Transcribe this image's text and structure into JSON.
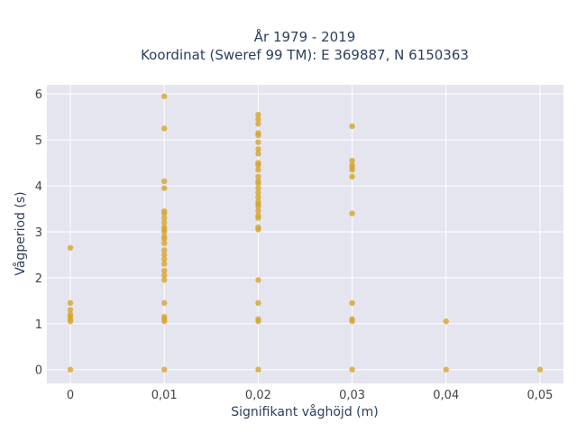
{
  "chart_data": {
    "type": "scatter",
    "title_line1": "År 1979 - 2019",
    "title_line2": "Koordinat (Sweref 99 TM): E 369887, N 6150363",
    "xlabel": "Signifikant våghöjd (m)",
    "ylabel": "Vågperiod (s)",
    "xlim": [
      -0.0025,
      0.0525
    ],
    "ylim": [
      -0.3,
      6.2
    ],
    "x_ticks": [
      0,
      0.01,
      0.02,
      0.03,
      0.04,
      0.05
    ],
    "x_tick_labels": [
      "0",
      "0,01",
      "0,02",
      "0,03",
      "0,04",
      "0,05"
    ],
    "y_ticks": [
      0,
      1,
      2,
      3,
      4,
      5,
      6
    ],
    "y_tick_labels": [
      "0",
      "1",
      "2",
      "3",
      "4",
      "5",
      "6"
    ],
    "grid": true,
    "plot_background": "#e5e5f0",
    "marker_color": "#d4a52a",
    "series": [
      {
        "points": [
          [
            0,
            0
          ],
          [
            0,
            1.05
          ],
          [
            0,
            1.1
          ],
          [
            0,
            1.15
          ],
          [
            0,
            1.2
          ],
          [
            0,
            1.3
          ],
          [
            0,
            1.45
          ],
          [
            0,
            2.65
          ],
          [
            0.01,
            0
          ],
          [
            0.01,
            1.05
          ],
          [
            0.01,
            1.1
          ],
          [
            0.01,
            1.15
          ],
          [
            0.01,
            1.45
          ],
          [
            0.01,
            1.95
          ],
          [
            0.01,
            2.05
          ],
          [
            0.01,
            2.15
          ],
          [
            0.01,
            2.3
          ],
          [
            0.01,
            2.4
          ],
          [
            0.01,
            2.5
          ],
          [
            0.01,
            2.6
          ],
          [
            0.01,
            2.75
          ],
          [
            0.01,
            2.85
          ],
          [
            0.01,
            2.9
          ],
          [
            0.01,
            3.0
          ],
          [
            0.01,
            3.05
          ],
          [
            0.01,
            3.1
          ],
          [
            0.01,
            3.2
          ],
          [
            0.01,
            3.3
          ],
          [
            0.01,
            3.4
          ],
          [
            0.01,
            3.45
          ],
          [
            0.01,
            3.95
          ],
          [
            0.01,
            4.1
          ],
          [
            0.01,
            5.25
          ],
          [
            0.01,
            5.95
          ],
          [
            0.02,
            0
          ],
          [
            0.02,
            1.05
          ],
          [
            0.02,
            1.1
          ],
          [
            0.02,
            1.45
          ],
          [
            0.02,
            1.95
          ],
          [
            0.02,
            3.05
          ],
          [
            0.02,
            3.1
          ],
          [
            0.02,
            3.3
          ],
          [
            0.02,
            3.35
          ],
          [
            0.02,
            3.45
          ],
          [
            0.02,
            3.55
          ],
          [
            0.02,
            3.6
          ],
          [
            0.02,
            3.65
          ],
          [
            0.02,
            3.75
          ],
          [
            0.02,
            3.85
          ],
          [
            0.02,
            3.95
          ],
          [
            0.02,
            4.05
          ],
          [
            0.02,
            4.1
          ],
          [
            0.02,
            4.2
          ],
          [
            0.02,
            4.35
          ],
          [
            0.02,
            4.45
          ],
          [
            0.02,
            4.5
          ],
          [
            0.02,
            4.7
          ],
          [
            0.02,
            4.8
          ],
          [
            0.02,
            4.95
          ],
          [
            0.02,
            5.1
          ],
          [
            0.02,
            5.15
          ],
          [
            0.02,
            5.35
          ],
          [
            0.02,
            5.45
          ],
          [
            0.02,
            5.55
          ],
          [
            0.03,
            0
          ],
          [
            0.03,
            1.05
          ],
          [
            0.03,
            1.1
          ],
          [
            0.03,
            1.45
          ],
          [
            0.03,
            3.4
          ],
          [
            0.03,
            4.2
          ],
          [
            0.03,
            4.35
          ],
          [
            0.03,
            4.4
          ],
          [
            0.03,
            4.45
          ],
          [
            0.03,
            4.55
          ],
          [
            0.03,
            5.3
          ],
          [
            0.04,
            0
          ],
          [
            0.04,
            1.05
          ],
          [
            0.05,
            0
          ]
        ]
      }
    ]
  }
}
